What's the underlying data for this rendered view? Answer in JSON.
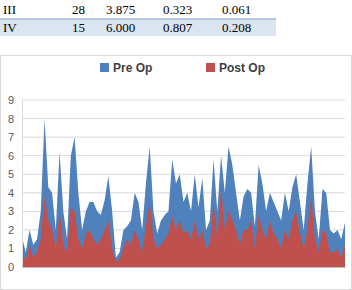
{
  "table": {
    "rows": [
      [
        "III",
        "28",
        "3.875",
        "0.323",
        "0.061"
      ],
      [
        "IV",
        "15",
        "6.000",
        "0.807",
        "0.208"
      ]
    ]
  },
  "chart_data": {
    "type": "area",
    "categories": [
      null,
      null,
      null,
      null,
      null,
      null,
      null,
      null,
      null,
      null,
      null,
      null,
      null,
      null,
      null,
      null,
      null,
      null,
      null,
      null,
      null,
      null,
      null,
      null,
      null,
      null,
      null,
      null,
      null,
      null,
      null,
      null,
      null,
      null,
      null,
      null,
      null,
      null,
      null,
      null,
      null,
      null,
      null,
      null,
      null,
      null,
      null,
      null,
      null,
      null,
      null,
      null,
      null,
      null,
      null,
      null,
      null,
      null,
      null,
      null,
      null,
      null,
      null,
      null,
      null,
      null,
      null,
      null,
      null,
      null,
      null,
      null,
      null,
      null,
      null,
      null,
      null,
      null,
      null,
      null,
      null,
      null,
      null,
      null,
      null,
      null,
      null
    ],
    "series": [
      {
        "name": "Pre Op",
        "color": "#4f81bd",
        "values": [
          1.6,
          0.8,
          2.0,
          1.2,
          1.5,
          3.0,
          8.0,
          4.3,
          4.0,
          2.0,
          6.2,
          3.0,
          1.5,
          6.0,
          7.0,
          4.0,
          2.0,
          3.0,
          3.5,
          3.5,
          3.0,
          2.8,
          3.6,
          4.9,
          3.0,
          0.5,
          0.8,
          2.0,
          2.2,
          2.5,
          4.0,
          3.5,
          2.0,
          4.5,
          6.5,
          3.0,
          1.8,
          2.5,
          2.8,
          3.0,
          5.8,
          4.5,
          5.0,
          3.5,
          4.0,
          3.0,
          5.0,
          3.2,
          4.8,
          2.0,
          2.5,
          5.8,
          3.0,
          6.0,
          4.0,
          6.5,
          5.5,
          4.0,
          2.5,
          3.8,
          4.2,
          4.0,
          2.2,
          5.5,
          4.5,
          3.0,
          4.0,
          3.5,
          3.0,
          2.5,
          4.0,
          3.0,
          4.3,
          5.0,
          3.5,
          2.0,
          4.5,
          6.5,
          3.0,
          1.5,
          4.2,
          4.0,
          2.0,
          1.8,
          2.0,
          1.5,
          2.4
        ]
      },
      {
        "name": "Post Op",
        "color": "#c0504d",
        "values": [
          1.0,
          0.3,
          1.2,
          0.5,
          0.8,
          1.5,
          3.8,
          2.5,
          2.0,
          1.0,
          3.0,
          1.2,
          0.8,
          3.2,
          3.0,
          1.5,
          1.0,
          1.8,
          2.0,
          1.5,
          1.2,
          1.5,
          2.0,
          2.5,
          1.0,
          0.3,
          0.4,
          1.0,
          1.5,
          1.2,
          2.0,
          1.5,
          0.8,
          2.2,
          3.5,
          1.5,
          1.0,
          1.2,
          1.5,
          1.8,
          2.8,
          2.0,
          2.5,
          1.8,
          2.0,
          1.5,
          2.5,
          1.5,
          2.0,
          1.0,
          1.2,
          3.5,
          1.5,
          4.3,
          2.0,
          3.0,
          2.5,
          2.0,
          1.2,
          2.0,
          2.0,
          2.5,
          1.0,
          2.8,
          2.0,
          1.5,
          2.5,
          1.8,
          1.5,
          1.0,
          2.0,
          1.5,
          2.5,
          3.0,
          1.8,
          1.0,
          2.0,
          3.8,
          1.5,
          0.8,
          2.0,
          1.8,
          0.8,
          0.8,
          1.0,
          0.5,
          1.2
        ]
      }
    ],
    "ylim": [
      0,
      9
    ],
    "yticks": [
      0,
      1,
      2,
      3,
      4,
      5,
      6,
      7,
      8,
      9
    ],
    "grid": true,
    "legend": "top",
    "tick_labels": "y"
  }
}
